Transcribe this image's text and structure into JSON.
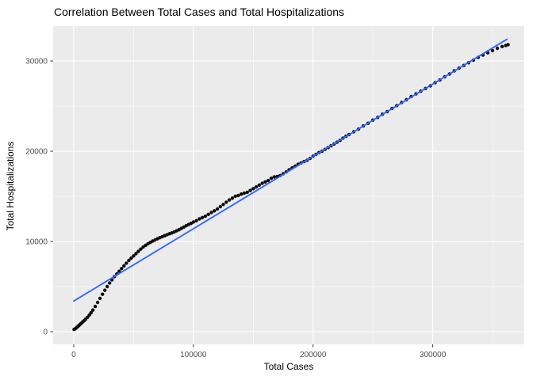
{
  "chart": {
    "title": "Correlation Between Total Cases and Total Hospitalizations",
    "xlabel": "Total Cases",
    "ylabel": "Total Hospitalizations"
  },
  "chart_data": {
    "type": "scatter",
    "title": "Correlation Between Total Cases and Total Hospitalizations",
    "xlabel": "Total Cases",
    "ylabel": "Total Hospitalizations",
    "xlim": [
      -17200,
      376500
    ],
    "ylim": [
      -1400,
      33860
    ],
    "x_ticks": [
      0,
      100000,
      200000,
      300000
    ],
    "x_minor_ticks": [
      50000,
      150000,
      250000,
      350000
    ],
    "y_ticks": [
      0,
      10000,
      20000,
      30000
    ],
    "y_minor_ticks": [
      5000,
      15000,
      25000
    ],
    "grid": true,
    "legend": false,
    "panel_bg": "#EBEBEB",
    "grid_color": "#FFFFFF",
    "tick_color": "#333333",
    "tick_label_color": "#4D4D4D",
    "point_color": "#0D0D0D",
    "trend_line": {
      "type": "linear_fit",
      "color": "#3366FF",
      "x": [
        0,
        362000
      ],
      "y": [
        3400,
        32400
      ]
    },
    "points": [
      [
        300,
        250
      ],
      [
        1200,
        330
      ],
      [
        2000,
        420
      ],
      [
        2800,
        510
      ],
      [
        3600,
        600
      ],
      [
        4400,
        700
      ],
      [
        5200,
        800
      ],
      [
        6000,
        900
      ],
      [
        7000,
        1020
      ],
      [
        8000,
        1140
      ],
      [
        9000,
        1260
      ],
      [
        10000,
        1400
      ],
      [
        11500,
        1600
      ],
      [
        13000,
        1850
      ],
      [
        14500,
        2100
      ],
      [
        16000,
        2400
      ],
      [
        18000,
        2800
      ],
      [
        20000,
        3250
      ],
      [
        22000,
        3700
      ],
      [
        24000,
        4150
      ],
      [
        26000,
        4600
      ],
      [
        28000,
        5000
      ],
      [
        30000,
        5400
      ],
      [
        32000,
        5750
      ],
      [
        34000,
        6100
      ],
      [
        36000,
        6400
      ],
      [
        38000,
        6700
      ],
      [
        40000,
        7000
      ],
      [
        42000,
        7300
      ],
      [
        44000,
        7600
      ],
      [
        46000,
        7900
      ],
      [
        48000,
        8150
      ],
      [
        50000,
        8400
      ],
      [
        52000,
        8650
      ],
      [
        54000,
        8900
      ],
      [
        56000,
        9150
      ],
      [
        58000,
        9380
      ],
      [
        60000,
        9570
      ],
      [
        62000,
        9740
      ],
      [
        64000,
        9900
      ],
      [
        66000,
        10050
      ],
      [
        68000,
        10180
      ],
      [
        70000,
        10300
      ],
      [
        72000,
        10420
      ],
      [
        74000,
        10530
      ],
      [
        76000,
        10640
      ],
      [
        78000,
        10750
      ],
      [
        80000,
        10850
      ],
      [
        82000,
        10950
      ],
      [
        84000,
        11060
      ],
      [
        86000,
        11180
      ],
      [
        88000,
        11300
      ],
      [
        90000,
        11450
      ],
      [
        92000,
        11600
      ],
      [
        94000,
        11750
      ],
      [
        96000,
        11880
      ],
      [
        98000,
        12000
      ],
      [
        100000,
        12150
      ],
      [
        102500,
        12300
      ],
      [
        105000,
        12500
      ],
      [
        107500,
        12650
      ],
      [
        110000,
        12800
      ],
      [
        112500,
        13000
      ],
      [
        115000,
        13200
      ],
      [
        117500,
        13400
      ],
      [
        120000,
        13600
      ],
      [
        122500,
        13850
      ],
      [
        125000,
        14100
      ],
      [
        127500,
        14350
      ],
      [
        130000,
        14600
      ],
      [
        132500,
        14800
      ],
      [
        135000,
        15000
      ],
      [
        137500,
        15100
      ],
      [
        140000,
        15250
      ],
      [
        142500,
        15350
      ],
      [
        145000,
        15450
      ],
      [
        147500,
        15650
      ],
      [
        150000,
        15850
      ],
      [
        152500,
        16050
      ],
      [
        155000,
        16250
      ],
      [
        157500,
        16450
      ],
      [
        160000,
        16600
      ],
      [
        162500,
        16750
      ],
      [
        165000,
        17000
      ],
      [
        167500,
        17150
      ],
      [
        170000,
        17200
      ],
      [
        172500,
        17300
      ],
      [
        175000,
        17500
      ],
      [
        177500,
        17700
      ],
      [
        180000,
        17950
      ],
      [
        182500,
        18150
      ],
      [
        185000,
        18350
      ],
      [
        187500,
        18550
      ],
      [
        190000,
        18700
      ],
      [
        192500,
        18850
      ],
      [
        195000,
        19000
      ],
      [
        197500,
        19200
      ],
      [
        200000,
        19450
      ],
      [
        202500,
        19650
      ],
      [
        205000,
        19850
      ],
      [
        207500,
        20000
      ],
      [
        210000,
        20200
      ],
      [
        212500,
        20400
      ],
      [
        215000,
        20600
      ],
      [
        217500,
        20800
      ],
      [
        220000,
        21000
      ],
      [
        222500,
        21200
      ],
      [
        225000,
        21450
      ],
      [
        227500,
        21650
      ],
      [
        230000,
        21850
      ],
      [
        234000,
        22150
      ],
      [
        238000,
        22450
      ],
      [
        242000,
        22800
      ],
      [
        246000,
        23100
      ],
      [
        250000,
        23450
      ],
      [
        254000,
        23750
      ],
      [
        258000,
        24100
      ],
      [
        262000,
        24400
      ],
      [
        266000,
        24750
      ],
      [
        270000,
        25050
      ],
      [
        274000,
        25400
      ],
      [
        278000,
        25700
      ],
      [
        282000,
        26050
      ],
      [
        286000,
        26350
      ],
      [
        290000,
        26650
      ],
      [
        294000,
        26950
      ],
      [
        298000,
        27250
      ],
      [
        302000,
        27600
      ],
      [
        306000,
        27900
      ],
      [
        310000,
        28250
      ],
      [
        314000,
        28550
      ],
      [
        318000,
        28900
      ],
      [
        322000,
        29200
      ],
      [
        326000,
        29500
      ],
      [
        330000,
        29800
      ],
      [
        334000,
        30100
      ],
      [
        338000,
        30400
      ],
      [
        342000,
        30650
      ],
      [
        346000,
        30900
      ],
      [
        350000,
        31150
      ],
      [
        354000,
        31400
      ],
      [
        358000,
        31600
      ],
      [
        361000,
        31720
      ],
      [
        363000,
        31800
      ]
    ]
  }
}
